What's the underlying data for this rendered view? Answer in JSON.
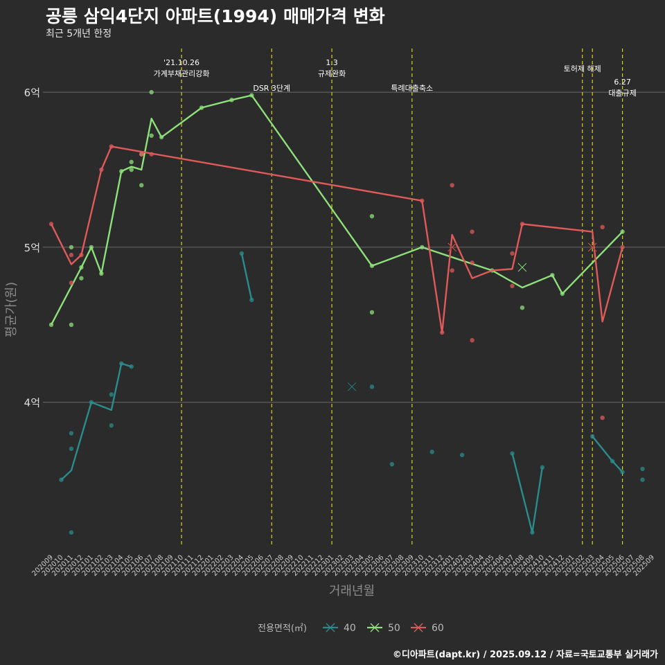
{
  "chart_data": {
    "type": "line",
    "title": "공릉 삼익4단지 아파트(1994) 매매가격 변화",
    "subtitle": "최근 5개년 한정",
    "xlabel": "거래년월",
    "ylabel": "평균가(원)",
    "caption": "©디아파트(dapt.kr) / 2025.09.12 / 자료=국토교통부 실거래가",
    "y_ticks": [
      {
        "value": 4,
        "label": "4억"
      },
      {
        "value": 5,
        "label": "5억"
      },
      {
        "value": 6,
        "label": "6억"
      }
    ],
    "ylim": [
      3.02,
      6.3
    ],
    "x_categories": [
      "202009",
      "202010",
      "202011",
      "202012",
      "202101",
      "202102",
      "202103",
      "202104",
      "202105",
      "202106",
      "202107",
      "202108",
      "202109",
      "202110",
      "202111",
      "202112",
      "202201",
      "202202",
      "202203",
      "202204",
      "202205",
      "202206",
      "202207",
      "202208",
      "202209",
      "202210",
      "202211",
      "202212",
      "202301",
      "202302",
      "202303",
      "202304",
      "202305",
      "202306",
      "202307",
      "202308",
      "202309",
      "202310",
      "202311",
      "202312",
      "202401",
      "202402",
      "202403",
      "202404",
      "202405",
      "202406",
      "202407",
      "202408",
      "202409",
      "202410",
      "202411",
      "202412",
      "202501",
      "202502",
      "202503",
      "202504",
      "202505",
      "202506",
      "202507",
      "202508",
      "202509"
    ],
    "legend": {
      "title": "전용면적(㎡)",
      "position": "bottom"
    },
    "events": [
      {
        "x": 13.0,
        "label_lines": [
          "'21.10.26",
          "가계부채관리강화"
        ],
        "level": 0
      },
      {
        "x": 22.0,
        "label_lines": [
          "DSR 3단계"
        ],
        "level": 2
      },
      {
        "x": 28.0,
        "label_lines": [
          "1.3",
          "규제완화"
        ],
        "level": 0
      },
      {
        "x": 36.0,
        "label_lines": [
          "특례대출축소"
        ],
        "level": 2
      },
      {
        "x": 53.0,
        "label_lines": [
          "토허제 해제"
        ],
        "level": 1
      },
      {
        "x": 54.0,
        "label_lines": [],
        "level": 1
      },
      {
        "x": 57.0,
        "label_lines": [
          "6.27",
          "대출규제"
        ],
        "level": 3
      }
    ],
    "series": [
      {
        "name": "40",
        "color": "#2a8c8c",
        "segments": [
          [
            [
              1,
              3.5
            ],
            [
              2,
              3.56
            ],
            [
              4,
              4.0
            ],
            [
              6,
              3.95
            ],
            [
              7,
              4.25
            ],
            [
              8,
              4.23
            ]
          ],
          [
            [
              19,
              4.96
            ],
            [
              20,
              4.66
            ]
          ],
          [
            [
              46,
              3.67
            ],
            [
              48,
              3.16
            ],
            [
              49,
              3.58
            ]
          ],
          [
            [
              54,
              3.78
            ],
            [
              56,
              3.62
            ],
            [
              57,
              3.55
            ]
          ]
        ],
        "points": [
          [
            1,
            3.5
          ],
          [
            2,
            3.8
          ],
          [
            2,
            3.7
          ],
          [
            2,
            3.16
          ],
          [
            4,
            4.0
          ],
          [
            6,
            4.05
          ],
          [
            6,
            3.85
          ],
          [
            7,
            4.25
          ],
          [
            8,
            4.23
          ],
          [
            19,
            4.96
          ],
          [
            20,
            4.66
          ],
          [
            32,
            4.1
          ],
          [
            34,
            3.6
          ],
          [
            38,
            3.68
          ],
          [
            41,
            3.66
          ],
          [
            46,
            3.67
          ],
          [
            48,
            3.16
          ],
          [
            49,
            3.58
          ],
          [
            54,
            3.78
          ],
          [
            56,
            3.62
          ],
          [
            57,
            3.55
          ],
          [
            59,
            3.57
          ],
          [
            59,
            3.5
          ]
        ],
        "crosses": [
          [
            30,
            4.1
          ]
        ]
      },
      {
        "name": "50",
        "color": "#8ee07a",
        "segments": [
          [
            [
              0,
              4.5
            ],
            [
              3,
              4.87
            ],
            [
              4,
              5.0
            ],
            [
              5,
              4.83
            ],
            [
              7,
              5.49
            ],
            [
              8,
              5.52
            ],
            [
              9,
              5.5
            ],
            [
              10,
              5.83
            ],
            [
              11,
              5.71
            ],
            [
              15,
              5.9
            ],
            [
              18,
              5.95
            ],
            [
              20,
              5.98
            ],
            [
              32,
              4.88
            ],
            [
              37,
              5.0
            ],
            [
              44,
              4.85
            ],
            [
              47,
              4.74
            ],
            [
              50,
              4.82
            ],
            [
              51,
              4.7
            ],
            [
              57,
              5.1
            ]
          ]
        ],
        "points": [
          [
            0,
            4.5
          ],
          [
            2,
            5.0
          ],
          [
            2,
            4.5
          ],
          [
            3,
            4.87
          ],
          [
            3,
            4.8
          ],
          [
            4,
            5.0
          ],
          [
            5,
            4.83
          ],
          [
            7,
            5.49
          ],
          [
            8,
            5.55
          ],
          [
            8,
            5.5
          ],
          [
            9,
            5.6
          ],
          [
            9,
            5.4
          ],
          [
            10,
            6.0
          ],
          [
            10,
            5.72
          ],
          [
            11,
            5.71
          ],
          [
            15,
            5.9
          ],
          [
            18,
            5.95
          ],
          [
            20,
            5.98
          ],
          [
            32,
            5.2
          ],
          [
            32,
            4.58
          ],
          [
            32,
            4.88
          ],
          [
            37,
            5.0
          ],
          [
            44,
            4.85
          ],
          [
            47,
            4.61
          ],
          [
            50,
            4.82
          ],
          [
            51,
            4.7
          ],
          [
            57,
            5.1
          ]
        ],
        "crosses": [
          [
            47,
            4.87
          ]
        ]
      },
      {
        "name": "60",
        "color": "#e05a5a",
        "segments": [
          [
            [
              0,
              5.15
            ],
            [
              2,
              4.89
            ],
            [
              3,
              4.95
            ],
            [
              5,
              5.5
            ],
            [
              6,
              5.65
            ],
            [
              37,
              5.3
            ],
            [
              39,
              4.45
            ],
            [
              40,
              5.08
            ],
            [
              42,
              4.8
            ],
            [
              44,
              4.85
            ],
            [
              46,
              4.86
            ],
            [
              47,
              5.15
            ],
            [
              54,
              5.1
            ],
            [
              55,
              4.52
            ],
            [
              57,
              5.0
            ]
          ]
        ],
        "points": [
          [
            0,
            5.15
          ],
          [
            2,
            4.95
          ],
          [
            2,
            4.77
          ],
          [
            3,
            4.95
          ],
          [
            5,
            5.5
          ],
          [
            6,
            5.65
          ],
          [
            9,
            5.6
          ],
          [
            10,
            5.6
          ],
          [
            37,
            5.3
          ],
          [
            39,
            4.45
          ],
          [
            40,
            5.4
          ],
          [
            40,
            4.85
          ],
          [
            42,
            5.1
          ],
          [
            42,
            4.9
          ],
          [
            42,
            4.4
          ],
          [
            46,
            4.96
          ],
          [
            46,
            4.75
          ],
          [
            47,
            5.15
          ],
          [
            55,
            5.13
          ],
          [
            55,
            3.9
          ],
          [
            57,
            5.0
          ]
        ],
        "crosses": [
          [
            40,
            5.0
          ],
          [
            54,
            5.0
          ]
        ]
      }
    ]
  }
}
